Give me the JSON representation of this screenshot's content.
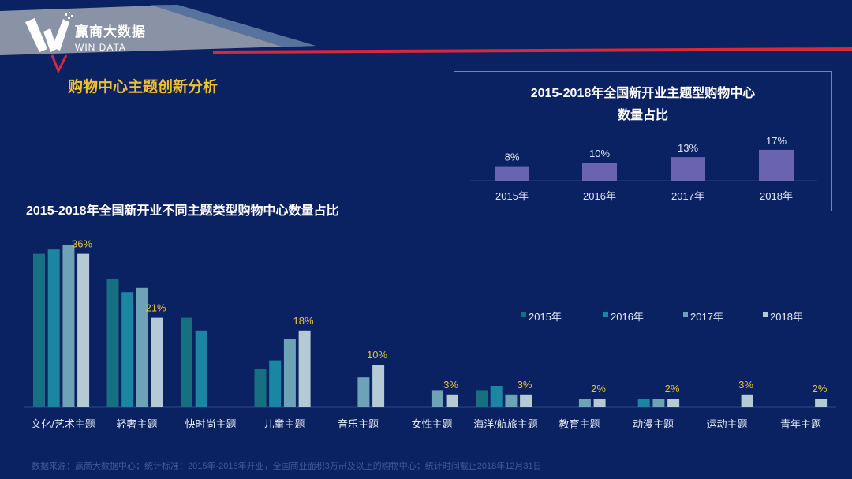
{
  "header": {
    "logo_cn": "赢商大数据",
    "logo_en": "WIN DATA",
    "section_title": "购物中心主题创新分析"
  },
  "colors": {
    "background": "#0b2262",
    "accent_red": "#d8283c",
    "label_yellow": "#e8c040",
    "inset_bar": "#6a63b0"
  },
  "chart_data": [
    {
      "type": "bar",
      "title_line1": "2015-2018年全国新开业主题型购物中心",
      "title_line2": "数量占比",
      "categories": [
        "2015年",
        "2016年",
        "2017年",
        "2018年"
      ],
      "values": [
        8,
        10,
        13,
        17
      ],
      "labels": [
        "8%",
        "10%",
        "13%",
        "17%"
      ],
      "grid": false
    },
    {
      "type": "bar",
      "title": "2015-2018年全国新开业不同主题类型购物中心数量占比",
      "categories": [
        "文化/艺术主题",
        "轻奢主题",
        "快时尚主题",
        "儿童主题",
        "音乐主题",
        "女性主题",
        "海洋/航旅主题",
        "教育主题",
        "动漫主题",
        "运动主题",
        "青年主题"
      ],
      "series": [
        {
          "name": "2015年",
          "color": "#176f82",
          "values": [
            36,
            30,
            21,
            9,
            null,
            null,
            4,
            null,
            null,
            null,
            null
          ]
        },
        {
          "name": "2016年",
          "color": "#1a86a2",
          "values": [
            37,
            27,
            18,
            11,
            null,
            null,
            5,
            null,
            2,
            null,
            null
          ]
        },
        {
          "name": "2017年",
          "color": "#6ea2b6",
          "values": [
            38,
            28,
            null,
            16,
            7,
            4,
            3,
            2,
            2,
            null,
            null
          ]
        },
        {
          "name": "2018年",
          "color": "#b6cad6",
          "values": [
            36,
            21,
            null,
            18,
            10,
            3,
            3,
            2,
            2,
            3,
            2
          ]
        }
      ],
      "data_labels": [
        "36%",
        "21%",
        "",
        "18%",
        "10%",
        "3%",
        "3%",
        "2%",
        "2%",
        "3%",
        "2%"
      ],
      "legend": "right",
      "grid": false
    }
  ],
  "footer": "数据来源：赢商大数据中心；统计标准：2015年-2018年开业，全国商业面积3万㎡及以上的购物中心；统计时间截止2018年12月31日"
}
